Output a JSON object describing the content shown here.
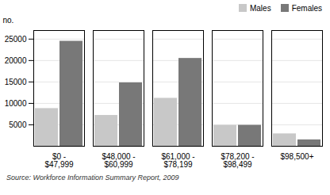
{
  "chart_data": {
    "type": "bar",
    "categories": [
      "$0 -\n$47,999",
      "$48,000 -\n$60,999",
      "$61,000 -\n$78,199",
      "$78,200 -\n$98,499",
      "$98,500+"
    ],
    "series": [
      {
        "name": "Males",
        "color": "#c8c8c8",
        "values": [
          8800,
          7200,
          11200,
          4900,
          2900
        ]
      },
      {
        "name": "Females",
        "color": "#787878",
        "values": [
          24500,
          14800,
          20500,
          4900,
          1500
        ]
      }
    ],
    "y_label": "no.",
    "ylim": [
      0,
      27000
    ],
    "yticks": [
      5000,
      10000,
      15000,
      20000,
      25000
    ],
    "grid": true,
    "legend": "upper right",
    "source": "Source: Workforce Information Summary Report, 2009"
  }
}
